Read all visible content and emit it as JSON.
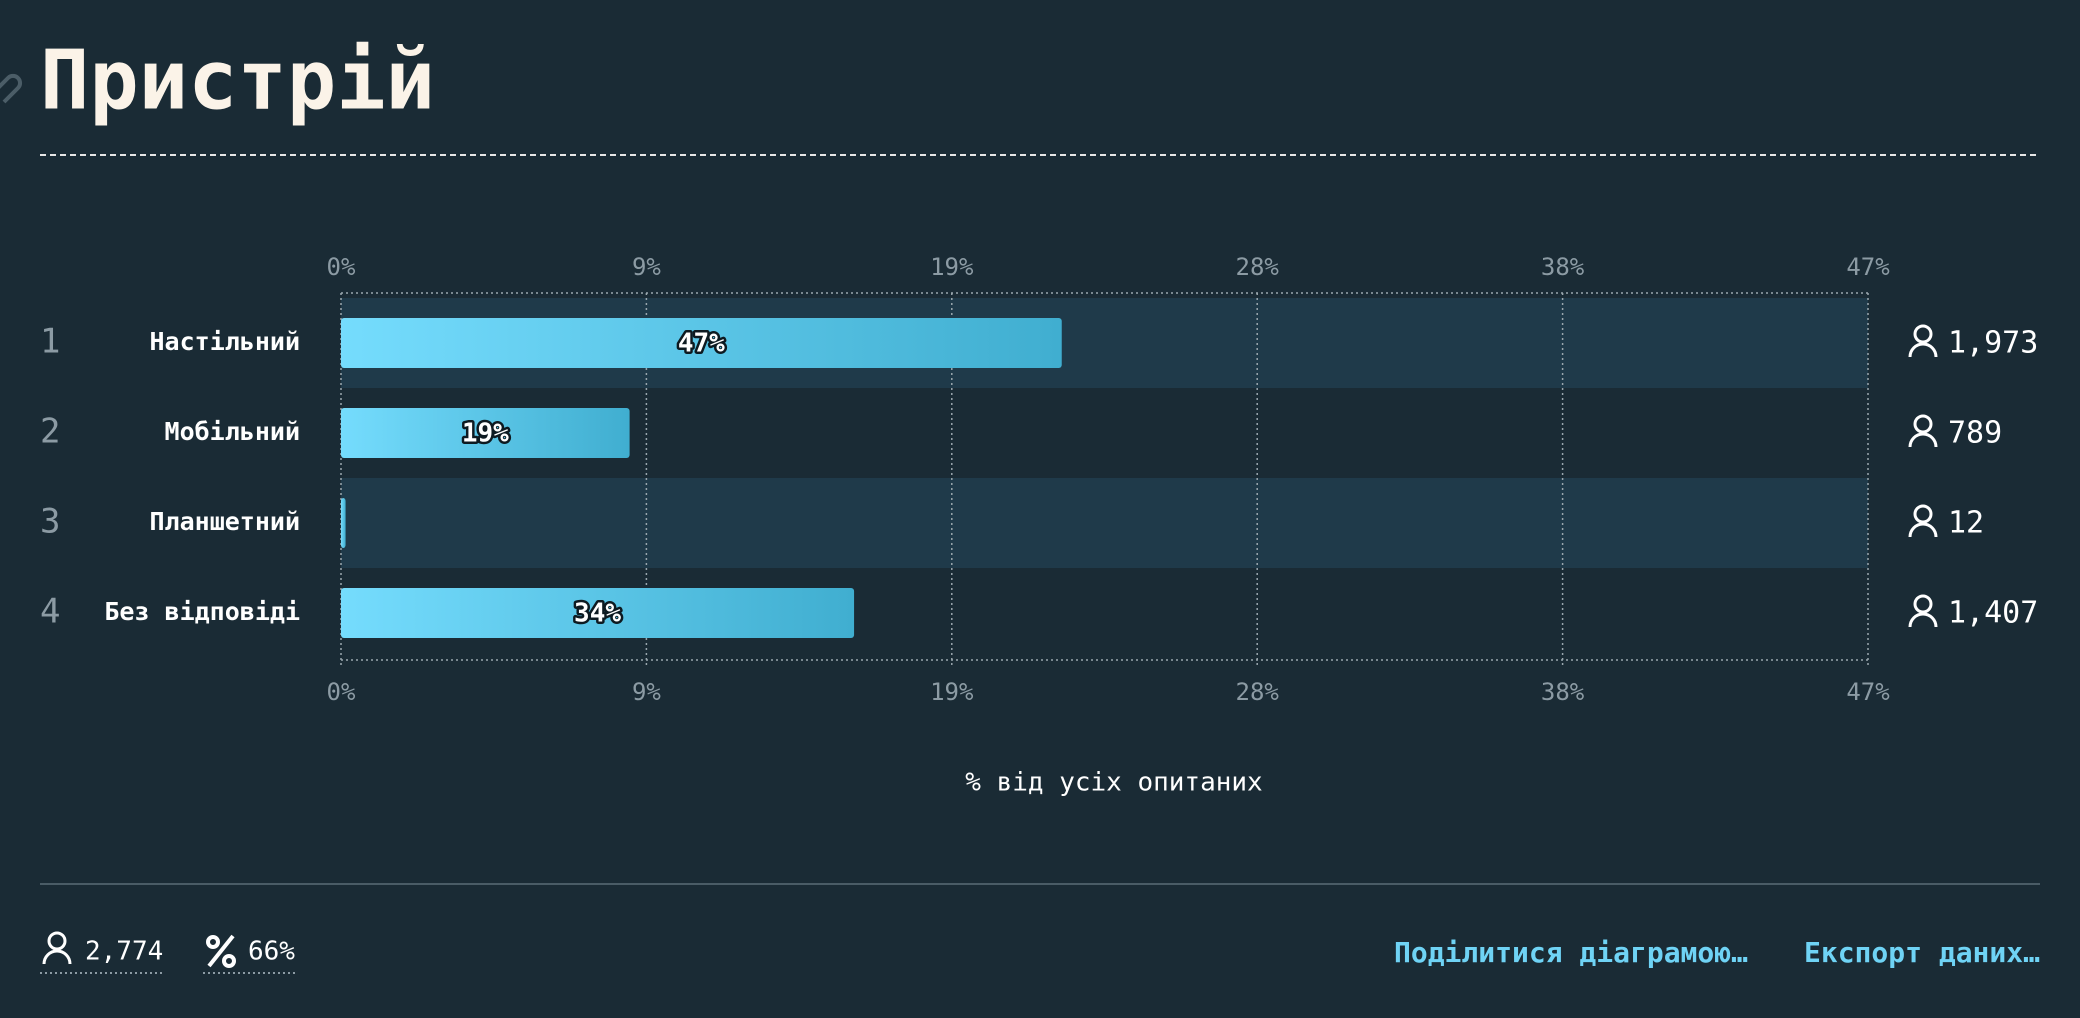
{
  "chart_data": {
    "type": "bar",
    "orientation": "horizontal",
    "title": "Пристрій",
    "ranks": [
      1,
      2,
      3,
      4
    ],
    "categories": [
      "Настільний",
      "Мобільний",
      "Планшетний",
      "Без відповіді"
    ],
    "values": [
      47.2,
      18.9,
      0.3,
      33.6
    ],
    "value_labels": [
      "47%",
      "19%",
      null,
      "34%"
    ],
    "counts": [
      "1,973",
      "789",
      "12",
      "1,407"
    ],
    "xlabel": "% від усіх опитаних",
    "xlim": [
      0,
      100
    ],
    "xticks": [
      {
        "value": 0,
        "label": "0%"
      },
      {
        "value": 20,
        "label": "9%"
      },
      {
        "value": 40,
        "label": "19%"
      },
      {
        "value": 60,
        "label": "28%"
      },
      {
        "value": 80,
        "label": "38%"
      },
      {
        "value": 100,
        "label": "47%"
      }
    ],
    "color": [
      "#75dcfd",
      "#40aed0"
    ],
    "grid": true
  },
  "footer": {
    "respondents": "2,774",
    "percent": "66%",
    "links": [
      "Поділитися діаграмою…",
      "Експорт даних…"
    ]
  }
}
